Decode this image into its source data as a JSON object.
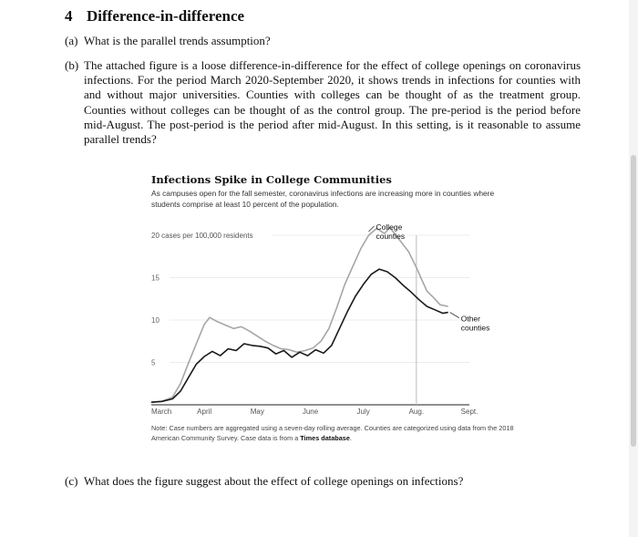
{
  "section": {
    "number": "4",
    "title": "Difference-in-difference"
  },
  "questions": [
    {
      "label": "(a)",
      "text": "What is the parallel trends assumption?"
    },
    {
      "label": "(b)",
      "text": "The attached figure is a loose difference-in-difference for the effect of college openings on coronavirus infections. For the period March 2020-September 2020, it shows trends in infections for counties with and without major universities. Counties with colleges can be thought of as the treatment group. Counties without colleges can be thought of as the control group. The pre-period is the period before mid-August. The post-period is the period after mid-August. In this setting, is it reasonable to assume parallel trends?"
    },
    {
      "label": "(c)",
      "text": "What does the figure suggest about the effect of college openings on infections?"
    }
  ],
  "figure": {
    "title": "Infections Spike in College Communities",
    "subtitle": "As campuses open for the fall semester, coronavirus infections are increasing more in counties where students comprise at least 10 percent of the population.",
    "note_prefix": "Note: Case numbers are aggregated using a seven-day rolling average. Counties are categorized using data from the 2018 American Community Survey. Case data is from a ",
    "note_bold": "Times database",
    "note_suffix": "."
  },
  "chart_data": {
    "type": "line",
    "y_unit_label": "20 cases per 100,000 residents",
    "x_ticks": [
      "March",
      "April",
      "May",
      "June",
      "July",
      "Aug.",
      "Sept."
    ],
    "y_ticks": [
      5,
      10,
      15
    ],
    "ylim": [
      0,
      20
    ],
    "grid": true,
    "marker_label_month": "Aug.",
    "colors": {
      "college": "#a6a6a6",
      "other": "#1a1a1a"
    },
    "series": [
      {
        "name": "College counties",
        "label_lines": [
          "College",
          "counties"
        ],
        "x": [
          0,
          0.2,
          0.4,
          0.55,
          0.7,
          0.85,
          1.0,
          1.1,
          1.25,
          1.4,
          1.55,
          1.7,
          1.85,
          2.0,
          2.15,
          2.3,
          2.45,
          2.6,
          2.75,
          2.9,
          3.05,
          3.2,
          3.35,
          3.5,
          3.65,
          3.8,
          3.95,
          4.1,
          4.25,
          4.4,
          4.5,
          4.6,
          4.7,
          4.85,
          5.0,
          5.1,
          5.2,
          5.3,
          5.45,
          5.6
        ],
        "values": [
          0.3,
          0.4,
          0.9,
          2.5,
          4.9,
          7.2,
          9.5,
          10.3,
          9.8,
          9.4,
          9.0,
          9.2,
          8.7,
          8.1,
          7.5,
          7.0,
          6.6,
          6.5,
          6.2,
          6.4,
          6.7,
          7.5,
          9.0,
          11.5,
          14.2,
          16.3,
          18.4,
          20.0,
          20.8,
          20.2,
          20.9,
          20.1,
          19.3,
          18.1,
          16.2,
          14.8,
          13.4,
          12.8,
          11.8,
          11.6
        ]
      },
      {
        "name": "Other counties",
        "label_lines": [
          "Other",
          "counties"
        ],
        "x": [
          0,
          0.2,
          0.4,
          0.55,
          0.7,
          0.85,
          1.0,
          1.15,
          1.3,
          1.45,
          1.6,
          1.75,
          1.9,
          2.05,
          2.2,
          2.35,
          2.5,
          2.65,
          2.8,
          2.95,
          3.1,
          3.25,
          3.4,
          3.55,
          3.7,
          3.85,
          4.0,
          4.15,
          4.3,
          4.45,
          4.6,
          4.75,
          4.9,
          5.05,
          5.2,
          5.35,
          5.5,
          5.6
        ],
        "values": [
          0.3,
          0.4,
          0.7,
          1.6,
          3.2,
          4.8,
          5.7,
          6.3,
          5.8,
          6.6,
          6.4,
          7.2,
          7.0,
          6.9,
          6.7,
          6.0,
          6.4,
          5.6,
          6.2,
          5.8,
          6.5,
          6.1,
          7.0,
          9.0,
          11.0,
          12.8,
          14.2,
          15.4,
          16.0,
          15.7,
          15.0,
          14.1,
          13.3,
          12.4,
          11.6,
          11.2,
          10.8,
          10.9
        ]
      }
    ]
  }
}
